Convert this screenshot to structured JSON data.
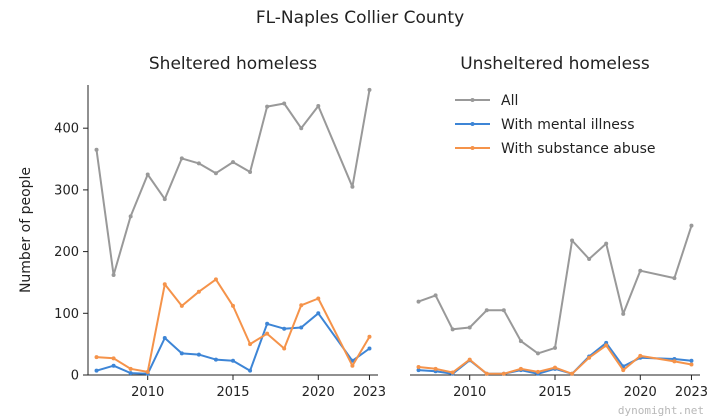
{
  "title": "FL-Naples Collier County",
  "watermark": "dynomight.net",
  "colors": {
    "all": "#999999",
    "mental": "#3d85d6",
    "substance": "#f5934a"
  },
  "chart_data": [
    {
      "type": "line",
      "title": "Sheltered homeless",
      "ylabel": "Number of people",
      "xlim": [
        2006.5,
        2023.5
      ],
      "ylim": [
        0,
        470
      ],
      "xticks": [
        2010,
        2015,
        2020,
        2023
      ],
      "yticks": [
        0,
        100,
        200,
        300,
        400
      ],
      "x": [
        2007,
        2008,
        2009,
        2010,
        2011,
        2012,
        2013,
        2014,
        2015,
        2016,
        2017,
        2018,
        2019,
        2020,
        2022,
        2023
      ],
      "series": [
        {
          "name": "All",
          "color_key": "all",
          "values": [
            365,
            162,
            257,
            325,
            285,
            351,
            343,
            327,
            345,
            329,
            435,
            440,
            400,
            436,
            305,
            462
          ]
        },
        {
          "name": "With mental illness",
          "color_key": "mental",
          "values": [
            7,
            15,
            3,
            2,
            60,
            35,
            33,
            25,
            23,
            7,
            83,
            75,
            77,
            100,
            23,
            43
          ]
        },
        {
          "name": "With substance abuse",
          "color_key": "substance",
          "values": [
            29,
            27,
            10,
            5,
            147,
            112,
            135,
            155,
            112,
            50,
            67,
            43,
            113,
            124,
            15,
            62
          ]
        }
      ]
    },
    {
      "type": "line",
      "title": "Unsheltered homeless",
      "xlim": [
        2006.5,
        2023.5
      ],
      "ylim": [
        0,
        470
      ],
      "xticks": [
        2010,
        2015,
        2020,
        2023
      ],
      "legend": "top-right",
      "x": [
        2007,
        2008,
        2009,
        2010,
        2011,
        2012,
        2013,
        2014,
        2015,
        2016,
        2017,
        2018,
        2019,
        2020,
        2022,
        2023
      ],
      "series": [
        {
          "name": "All",
          "color_key": "all",
          "values": [
            119,
            129,
            74,
            77,
            105,
            105,
            55,
            35,
            44,
            218,
            188,
            213,
            99,
            169,
            157,
            242
          ]
        },
        {
          "name": "With mental illness",
          "color_key": "mental",
          "values": [
            8,
            6,
            2,
            24,
            2,
            2,
            8,
            2,
            10,
            2,
            30,
            52,
            14,
            28,
            26,
            23
          ]
        },
        {
          "name": "With substance abuse",
          "color_key": "substance",
          "values": [
            13,
            10,
            4,
            25,
            2,
            2,
            10,
            5,
            12,
            2,
            28,
            48,
            8,
            31,
            22,
            17
          ]
        }
      ]
    }
  ]
}
